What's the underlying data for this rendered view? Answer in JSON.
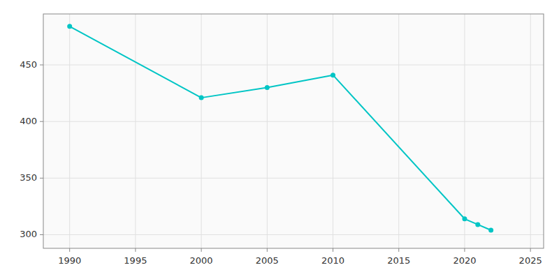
{
  "chart_data": {
    "type": "line",
    "x": [
      1990,
      2000,
      2005,
      2010,
      2020,
      2021,
      2022
    ],
    "values": [
      484,
      421,
      430,
      441,
      314,
      309,
      304
    ],
    "color": "#00C5C5",
    "marker": "circle",
    "xlim": [
      1988,
      2026
    ],
    "ylim": [
      288,
      495
    ],
    "xticks": [
      1990,
      1995,
      2000,
      2005,
      2010,
      2015,
      2020,
      2025
    ],
    "yticks": [
      300,
      350,
      400,
      450
    ],
    "grid": true
  }
}
